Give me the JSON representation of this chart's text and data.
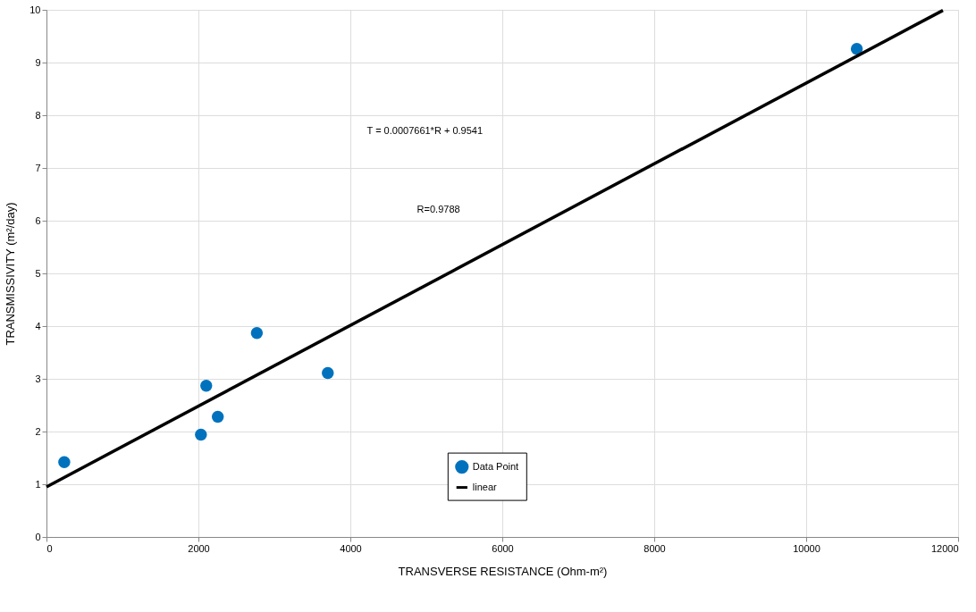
{
  "chart_data": {
    "type": "scatter",
    "xlabel": "TRANSVERSE RESISTANCE (Ohm-m²)",
    "ylabel": "TRANSMISSIVITY (m²/day)",
    "annotations": [
      "T = 0.0007661*R + 0.9541",
      "R=0.9788"
    ],
    "series": [
      {
        "name": "Data Point",
        "color": "#0072bd",
        "x": [
          234,
          2033,
          2103,
          2255,
          2769,
          3703,
          10666
        ],
        "values": [
          1.42,
          1.94,
          2.87,
          2.28,
          3.87,
          3.11,
          9.26
        ]
      },
      {
        "name": "linear",
        "type": "line",
        "color": "#000000",
        "line_style": "solid",
        "marker": "none",
        "x": [
          0,
          11800
        ],
        "values": [
          0.95,
          9.99
        ]
      }
    ],
    "xlim": [
      0,
      12000
    ],
    "xticks": [
      0,
      2000,
      4000,
      6000,
      8000,
      10000,
      12000
    ],
    "ylim": [
      0,
      10
    ],
    "yticks": [
      0,
      1,
      2,
      3,
      4,
      5,
      6,
      7,
      8,
      9,
      10
    ],
    "grid": true,
    "legend": "bottom",
    "marker": "circle"
  }
}
